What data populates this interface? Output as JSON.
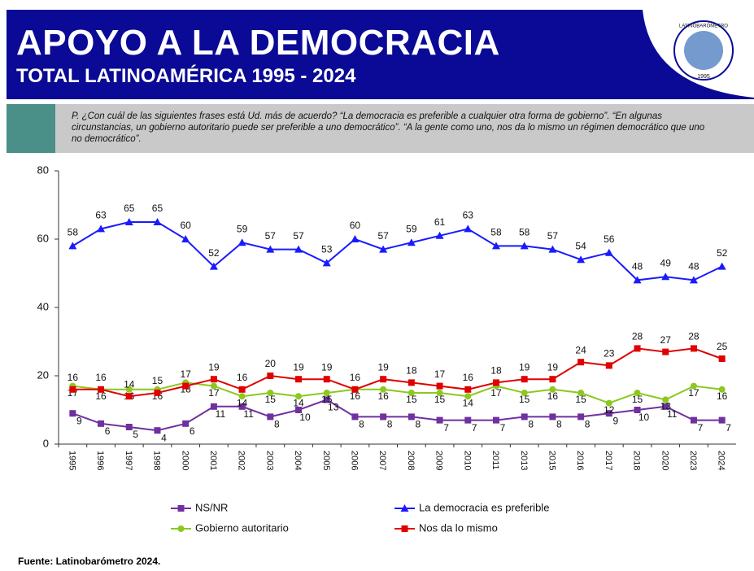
{
  "header": {
    "title": "APOYO A LA DEMOCRACIA",
    "subtitle": "TOTAL LATINOAMÉRICA 1995 - 2024",
    "logo_text": "LATINOBARÓMETRO",
    "logo_year": "1995"
  },
  "question": "P. ¿Con cuál de las siguientes frases está Ud. más de acuerdo? “La democracia es preferible a cualquier otra forma de gobierno”. “En algunas circunstancias, un gobierno autoritario puede ser preferible a uno democrático”. “A la gente como uno, nos da lo mismo un régimen democrático que uno no democrático”.",
  "source": "Fuente: Latinobarómetro 2024.",
  "chart_data": {
    "type": "line",
    "categories": [
      "1995",
      "1996",
      "1997",
      "1998",
      "2000",
      "2001",
      "2002",
      "2003",
      "2004",
      "2005",
      "2006",
      "2007",
      "2008",
      "2009",
      "2010",
      "2011",
      "2013",
      "2015",
      "2016",
      "2017",
      "2018",
      "2020",
      "2023",
      "2024"
    ],
    "series": [
      {
        "name": "NS/NR",
        "color": "#7030a0",
        "marker": "square",
        "values": [
          9,
          6,
          5,
          4,
          6,
          11,
          11,
          8,
          10,
          13,
          8,
          8,
          8,
          7,
          7,
          7,
          8,
          8,
          8,
          9,
          10,
          11,
          7,
          7
        ]
      },
      {
        "name": "La democracia es preferible",
        "color": "#1a1aff",
        "marker": "triangle",
        "values": [
          58,
          63,
          65,
          65,
          60,
          52,
          59,
          57,
          57,
          53,
          60,
          57,
          59,
          61,
          63,
          58,
          58,
          57,
          54,
          56,
          48,
          49,
          48,
          52
        ]
      },
      {
        "name": "Gobierno autoritario",
        "color": "#8cc81e",
        "marker": "circle",
        "values": [
          17,
          16,
          16,
          16,
          18,
          17,
          14,
          15,
          14,
          15,
          16,
          16,
          15,
          15,
          14,
          17,
          15,
          16,
          15,
          12,
          15,
          13,
          17,
          16
        ]
      },
      {
        "name": "Nos da lo mismo",
        "color": "#e00000",
        "marker": "square",
        "values": [
          16,
          16,
          14,
          15,
          17,
          19,
          16,
          20,
          19,
          19,
          16,
          19,
          18,
          17,
          16,
          18,
          19,
          19,
          24,
          23,
          28,
          27,
          28,
          25
        ]
      }
    ],
    "ylim": [
      0,
      80
    ],
    "yticks": [
      0,
      20,
      40,
      60,
      80
    ]
  }
}
